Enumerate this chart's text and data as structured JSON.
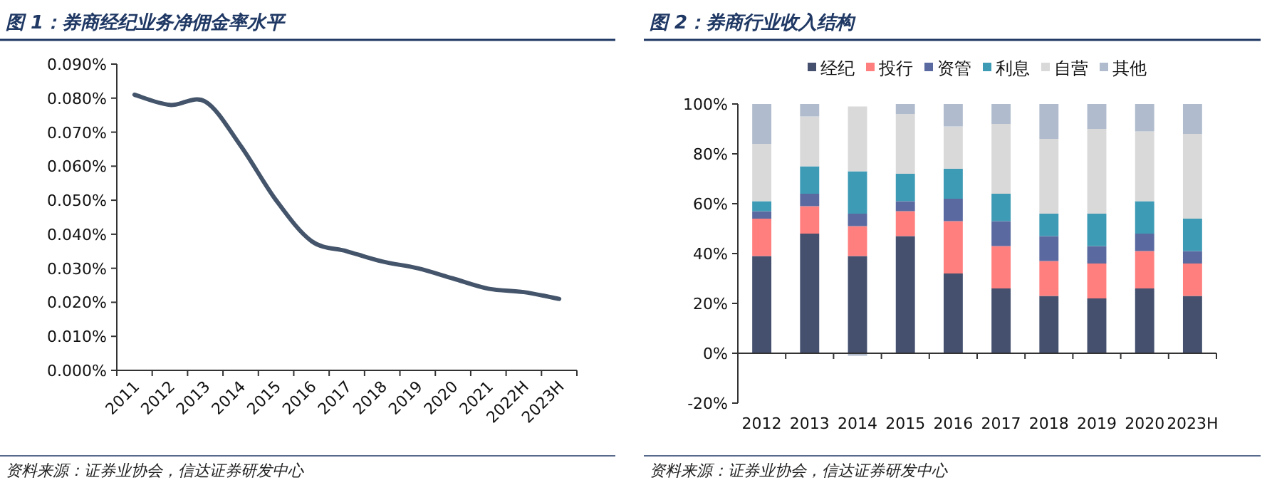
{
  "chart_data": [
    {
      "type": "line",
      "title": "图 1：券商经纪业务净佣金率水平",
      "categories": [
        "2011",
        "2012",
        "2013",
        "2014",
        "2015",
        "2016",
        "2017",
        "2018",
        "2019",
        "2020",
        "2021",
        "2022H",
        "2023H"
      ],
      "values": [
        0.081,
        0.078,
        0.079,
        0.066,
        0.05,
        0.038,
        0.035,
        0.032,
        0.03,
        0.027,
        0.024,
        0.023,
        0.021
      ],
      "color": "#44546a",
      "ylim": [
        0,
        0.09
      ],
      "yticks": [
        {
          "value": 0,
          "label": "0.000%"
        },
        {
          "value": 0.01,
          "label": "0.010%"
        },
        {
          "value": 0.02,
          "label": "0.020%"
        },
        {
          "value": 0.03,
          "label": "0.030%"
        },
        {
          "value": 0.04,
          "label": "0.040%"
        },
        {
          "value": 0.05,
          "label": "0.050%"
        },
        {
          "value": 0.06,
          "label": "0.060%"
        },
        {
          "value": 0.07,
          "label": "0.070%"
        },
        {
          "value": 0.08,
          "label": "0.080%"
        },
        {
          "value": 0.09,
          "label": "0.090%"
        }
      ],
      "annotations": [
        "资料来源：证券业协会，信达证券研发中心"
      ]
    },
    {
      "type": "bar",
      "stacked": true,
      "title": "图 2：券商行业收入结构",
      "categories": [
        "2012",
        "2013",
        "2014",
        "2015",
        "2016",
        "2017",
        "2018",
        "2019",
        "2020",
        "2023H"
      ],
      "series": [
        {
          "name": "经纪",
          "color": "#44506e",
          "values": [
            39,
            48,
            39,
            47,
            32,
            26,
            23,
            22,
            26,
            23
          ]
        },
        {
          "name": "投行",
          "color": "#ff7f7f",
          "values": [
            15,
            11,
            12,
            10,
            21,
            17,
            14,
            14,
            15,
            13
          ]
        },
        {
          "name": "资管",
          "color": "#5a6aa0",
          "values": [
            3,
            5,
            5,
            4,
            9,
            10,
            10,
            7,
            7,
            5
          ]
        },
        {
          "name": "利息",
          "color": "#3e9bb5",
          "values": [
            4,
            11,
            17,
            11,
            12,
            11,
            9,
            13,
            13,
            13
          ]
        },
        {
          "name": "自营",
          "color": "#d9d9d9",
          "values": [
            23,
            20,
            26,
            24,
            17,
            28,
            30,
            34,
            28,
            34
          ]
        },
        {
          "name": "其他",
          "color": "#b0bccd",
          "values": [
            16,
            5,
            -1,
            4,
            9,
            8,
            14,
            10,
            11,
            12
          ]
        }
      ],
      "ylim": [
        -20,
        100
      ],
      "yticks": [
        {
          "value": -20,
          "label": "-20%"
        },
        {
          "value": 0,
          "label": "0%"
        },
        {
          "value": 20,
          "label": "20%"
        },
        {
          "value": 40,
          "label": "40%"
        },
        {
          "value": 60,
          "label": "60%"
        },
        {
          "value": 80,
          "label": "80%"
        },
        {
          "value": 100,
          "label": "100%"
        }
      ],
      "legend": "top",
      "annotations": [
        "资料来源：证券业协会，信达证券研发中心"
      ]
    }
  ]
}
